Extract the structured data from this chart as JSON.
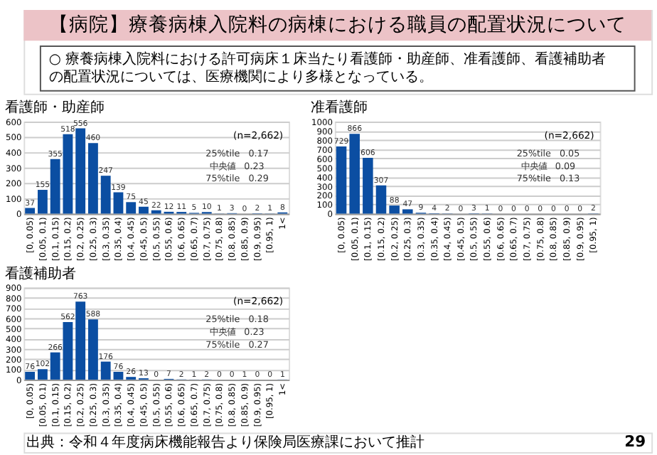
{
  "chart_data": [
    {
      "type": "other",
      "title": "【病院】療養病棟入院料の病棟における職員の配置状況について",
      "annotations": [
        "○ 療養病棟入院料における許可病床１床当たり看護師・助産師、准看護師、看護補助者の配置状況については、医療機関により多様となっている。"
      ]
    },
    {
      "type": "bar",
      "title": "看護師・助産師",
      "color": "#0b4ea2",
      "data_labels": true,
      "grid": "y",
      "categories": [
        "[0, 0.05)",
        "[0.05, 0.1)",
        "[0.1, 0.15)",
        "[0.15, 0.2)",
        "[0.2, 0.25)",
        "[0.25, 0.3)",
        "[0.3, 0.35)",
        "[0.35, 0.4)",
        "[0.4, 0.45)",
        "[0.45, 0.5)",
        "[0.5, 0.55)",
        "[0.55, 0.6)",
        "[0.6, 0.65)",
        "[0.65, 0.7)",
        "[0.7, 0.75)",
        "[0.75, 0.8)",
        "[0.8, 0.85)",
        "[0.85, 0.9)",
        "[0.9, 0.95)",
        "[0.95, 1)",
        "1<"
      ],
      "values": [
        37,
        155,
        355,
        518,
        556,
        460,
        247,
        139,
        75,
        45,
        22,
        12,
        11,
        5,
        10,
        1,
        3,
        0,
        2,
        1,
        8
      ],
      "ylim": [
        0,
        600
      ],
      "yticks": [
        0,
        100,
        200,
        300,
        400,
        500,
        600
      ],
      "annotations": [
        "(n=2,662)",
        "25%tile　0.17",
        "中央値　0.23",
        "75%tile　0.29"
      ]
    },
    {
      "type": "bar",
      "title": "准看護師",
      "color": "#0b4ea2",
      "data_labels": true,
      "grid": "y",
      "categories": [
        "[0, 0.05)",
        "[0.05, 0.1)",
        "[0.1, 0.15)",
        "[0.15, 0.2)",
        "[0.2, 0.25)",
        "[0.25, 0.3)",
        "[0.3, 0.35)",
        "[0.35, 0.4)",
        "[0.4, 0.45)",
        "[0.45, 0.5)",
        "[0.5, 0.55)",
        "[0.55, 0.6)",
        "[0.6, 0.65)",
        "[0.65, 0.7)",
        "[0.7, 0.75)",
        "[0.75, 0.8)",
        "[0.8, 0.85)",
        "[0.85, 0.9)",
        "[0.9, 0.95)",
        "[0.95, 1)"
      ],
      "values": [
        729,
        866,
        606,
        307,
        88,
        47,
        9,
        4,
        2,
        0,
        3,
        1,
        0,
        0,
        0,
        0,
        0,
        0,
        0,
        2
      ],
      "ylim": [
        0,
        1000
      ],
      "yticks": [
        0,
        100,
        200,
        300,
        400,
        500,
        600,
        700,
        800,
        900,
        {
          "value": 1000,
          "label": "1000"
        }
      ],
      "annotations": [
        "(n=2,662)",
        "25%tile　0.05",
        "中央値　0.09",
        "75%tile　0.13"
      ]
    },
    {
      "type": "bar",
      "title": "看護補助者",
      "color": "#0b4ea2",
      "data_labels": true,
      "grid": "y",
      "categories": [
        "[0, 0.05)",
        "[0.05, 0.1)",
        "[0.1, 0.15)",
        "[0.15, 0.2)",
        "[0.2, 0.25)",
        "[0.25, 0.3)",
        "[0.3, 0.35)",
        "[0.35, 0.4)",
        "[0.4, 0.45)",
        "[0.45, 0.5)",
        "[0.5, 0.55)",
        "[0.55, 0.6)",
        "[0.6, 0.65)",
        "[0.65, 0.7)",
        "[0.7, 0.75)",
        "[0.75, 0.8)",
        "[0.8, 0.85)",
        "[0.85, 0.9)",
        "[0.9, 0.95)",
        "[0.95, 1)",
        "1<"
      ],
      "values": [
        76,
        102,
        266,
        562,
        763,
        588,
        176,
        76,
        26,
        13,
        0,
        7,
        2,
        1,
        2,
        0,
        0,
        1,
        0,
        0,
        1
      ],
      "ylim": [
        0,
        900
      ],
      "yticks": [
        0,
        100,
        200,
        300,
        400,
        500,
        600,
        700,
        800,
        900
      ],
      "annotations": [
        "(n=2,662)",
        "25%tile　0.18",
        "中央値　0.23",
        "75%tile　0.27"
      ]
    },
    {
      "type": "other",
      "annotations": [
        "出典：令和４年度病床機能報告より保険局医療課において推計",
        "29"
      ]
    }
  ]
}
